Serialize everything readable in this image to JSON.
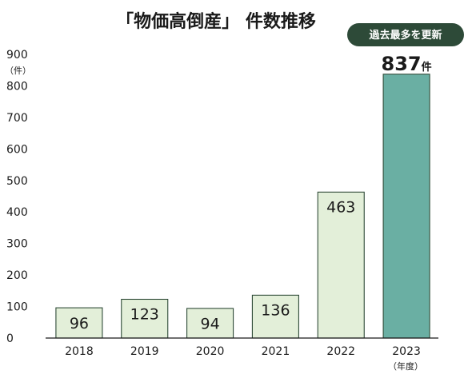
{
  "chart_data": {
    "type": "bar",
    "title": "「物価高倒産」 件数推移",
    "badge": "過去最多を更新",
    "y_unit": "（件）",
    "x_unit": "（年度）",
    "categories": [
      "2018",
      "2019",
      "2020",
      "2021",
      "2022",
      "2023"
    ],
    "values": [
      96,
      123,
      94,
      136,
      463,
      837
    ],
    "value_labels": [
      "96",
      "123",
      "94",
      "136",
      "463",
      "837"
    ],
    "highlight_unit": "件",
    "ylim": [
      0,
      900
    ],
    "yticks": [
      "0",
      "100",
      "200",
      "300",
      "400",
      "500",
      "600",
      "700",
      "800",
      "900"
    ],
    "grid": false,
    "highlight_index": 5,
    "colors": {
      "bar": "#e3efd9",
      "bar_stroke": "#2e4a37",
      "highlight_bar": "#6aafa3",
      "badge": "#2d4a38",
      "axis": "#1a1a1a"
    }
  }
}
